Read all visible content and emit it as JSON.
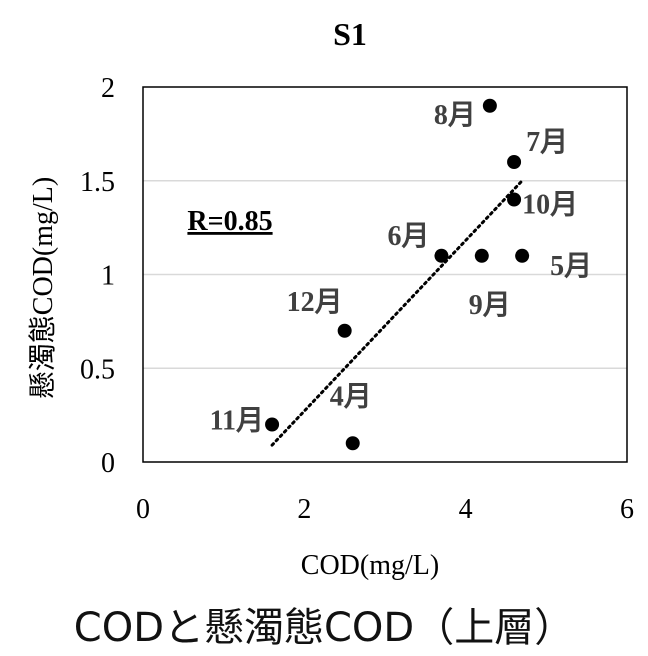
{
  "chart_data": {
    "type": "scatter",
    "title": "S1",
    "xlabel": "COD(mg/L)",
    "ylabel": "懸濁態COD(mg/L)",
    "xlim": [
      0,
      6
    ],
    "ylim": [
      0,
      2
    ],
    "xticks": [
      "0",
      "2",
      "4",
      "6"
    ],
    "yticks": [
      "0",
      "0.5",
      "1",
      "1.5",
      "2"
    ],
    "grid": "horizontal",
    "trendline": {
      "style": "dotted",
      "x": [
        1.6,
        4.7
      ],
      "y": [
        0.09,
        1.5
      ]
    },
    "annotation": "R=0.85",
    "points": [
      {
        "label": "4月",
        "x": 2.6,
        "y": 0.1
      },
      {
        "label": "5月",
        "x": 4.7,
        "y": 1.1
      },
      {
        "label": "6月",
        "x": 3.7,
        "y": 1.1
      },
      {
        "label": "7月",
        "x": 4.6,
        "y": 1.6
      },
      {
        "label": "8月",
        "x": 4.3,
        "y": 1.9
      },
      {
        "label": "9月",
        "x": 4.2,
        "y": 1.1
      },
      {
        "label": "10月",
        "x": 4.6,
        "y": 1.4
      },
      {
        "label": "11月",
        "x": 1.6,
        "y": 0.2
      },
      {
        "label": "12月",
        "x": 2.5,
        "y": 0.7
      }
    ],
    "colors": {
      "points": "#000000",
      "labels": "#404040",
      "grid": "#d9d9d9"
    }
  },
  "caption": "CODと懸濁態COD（上層）"
}
